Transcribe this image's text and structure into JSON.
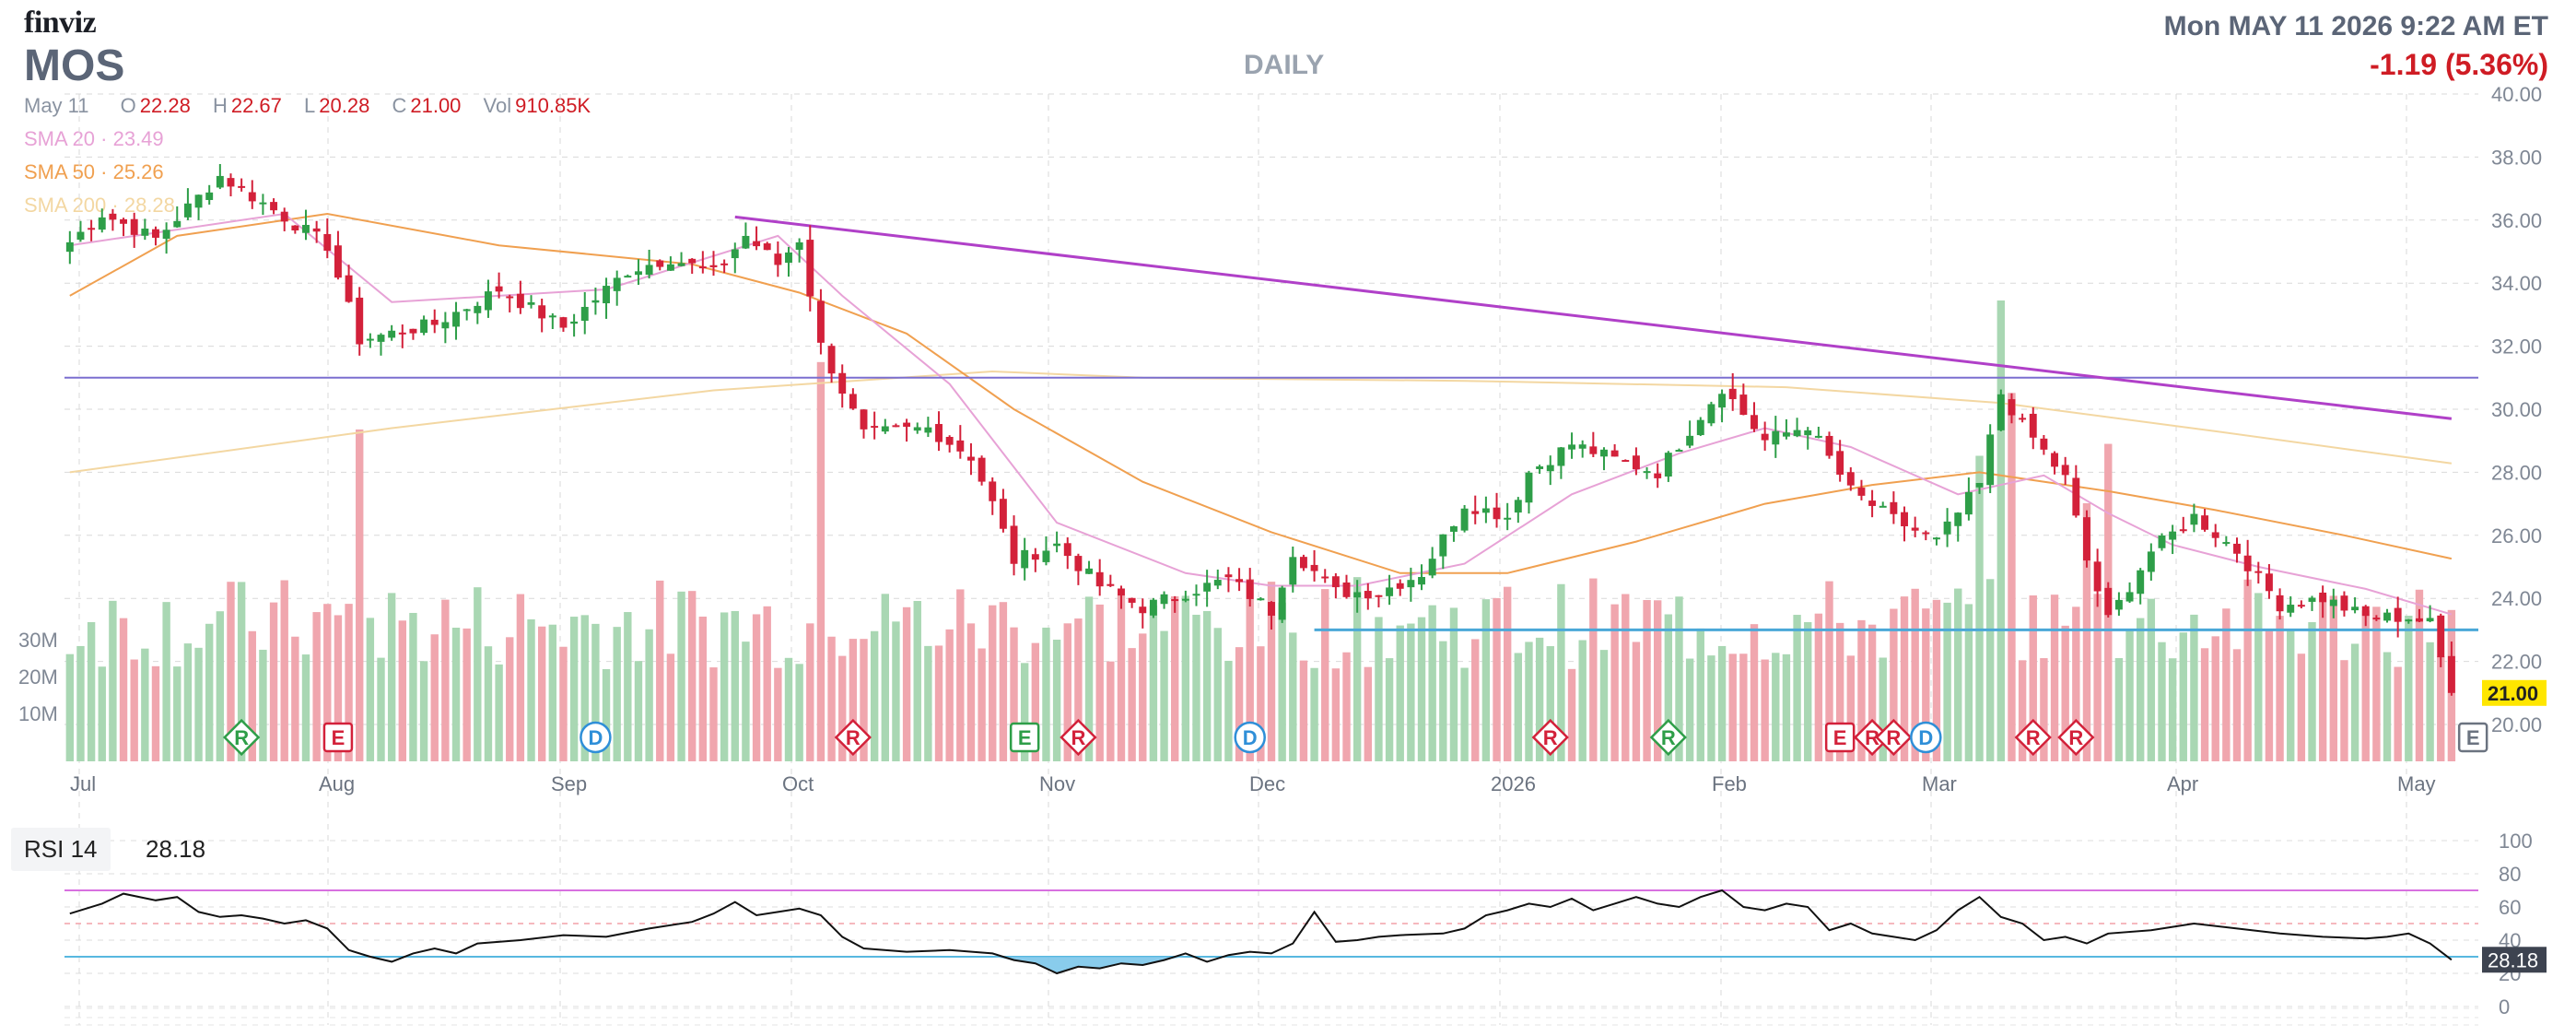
{
  "header": {
    "logo": "finviz",
    "ticker": "MOS",
    "timeframe": "DAILY",
    "datetime": "Mon MAY 11 2026 9:22 AM ET",
    "change": "-1.19 (5.36%)",
    "ohlc_date": "May 11",
    "open_label": "O",
    "open": "22.28",
    "high_label": "H",
    "high": "22.67",
    "low_label": "L",
    "low": "20.28",
    "close_label": "C",
    "close": "21.00",
    "vol_label": "Vol",
    "vol": "910.85K",
    "sma20": "SMA 20 · 23.49",
    "sma50": "SMA 50 · 25.26",
    "sma200": "SMA 200 · 28.28"
  },
  "colors": {
    "up": "#2e9e48",
    "down": "#d3213a",
    "vol_up": "#a9d7b3",
    "vol_down": "#f0a6ae",
    "sma20": "#e7a2d6",
    "sma50": "#f0a050",
    "sma200": "#f3d7a2",
    "trendline": "#b040c8",
    "hline": "#7b6fd0",
    "support": "#4aa8d8",
    "rsi_line": "#111111",
    "rsi_overbought": "#d870e0",
    "rsi_oversold": "#58b8e0"
  },
  "chart_data": [
    {
      "type": "candlestick",
      "ylim": [
        20,
        40
      ],
      "yticks": [
        "40.00",
        "38.00",
        "36.00",
        "34.00",
        "32.00",
        "30.00",
        "28.00",
        "26.00",
        "24.00",
        "22.00",
        "20.00"
      ],
      "last_price": "21.00",
      "xticks": [
        "Jul",
        "Aug",
        "Sep",
        "Oct",
        "Nov",
        "Dec",
        "2026",
        "Feb",
        "Mar",
        "Apr",
        "May"
      ],
      "key_closes": [
        [
          0,
          35.3
        ],
        [
          3,
          36.2
        ],
        [
          8,
          35.4
        ],
        [
          14,
          37.4
        ],
        [
          20,
          36.1
        ],
        [
          24,
          35.2
        ],
        [
          27,
          32.2
        ],
        [
          34,
          32.7
        ],
        [
          40,
          33.8
        ],
        [
          46,
          32.6
        ],
        [
          52,
          34.4
        ],
        [
          56,
          34.8
        ],
        [
          60,
          34.3
        ],
        [
          63,
          35.5
        ],
        [
          66,
          34.6
        ],
        [
          68,
          35.4
        ],
        [
          70,
          32.0
        ],
        [
          74,
          29.2
        ],
        [
          80,
          29.4
        ],
        [
          84,
          28.5
        ],
        [
          86,
          27.0
        ],
        [
          88,
          25.2
        ],
        [
          92,
          25.7
        ],
        [
          96,
          24.4
        ],
        [
          100,
          23.7
        ],
        [
          104,
          24.2
        ],
        [
          108,
          24.6
        ],
        [
          112,
          23.6
        ],
        [
          114,
          25.5
        ],
        [
          118,
          24.2
        ],
        [
          122,
          24.2
        ],
        [
          126,
          24.8
        ],
        [
          130,
          27.0
        ],
        [
          134,
          26.6
        ],
        [
          136,
          28.0
        ],
        [
          140,
          28.9
        ],
        [
          144,
          28.4
        ],
        [
          148,
          28.0
        ],
        [
          152,
          29.8
        ],
        [
          154,
          30.7
        ],
        [
          158,
          29.0
        ],
        [
          162,
          29.5
        ],
        [
          166,
          27.4
        ],
        [
          170,
          26.5
        ],
        [
          174,
          25.8
        ],
        [
          178,
          27.6
        ],
        [
          180,
          30.5
        ],
        [
          182,
          29.5
        ],
        [
          186,
          27.8
        ],
        [
          188,
          25.2
        ],
        [
          190,
          23.3
        ],
        [
          194,
          25.5
        ],
        [
          198,
          26.6
        ],
        [
          202,
          25.5
        ],
        [
          206,
          23.8
        ],
        [
          210,
          24.0
        ],
        [
          214,
          23.4
        ],
        [
          218,
          23.4
        ],
        [
          220,
          23.2
        ],
        [
          222,
          21.0
        ]
      ],
      "sma20": [
        [
          0,
          35.2
        ],
        [
          20,
          36.2
        ],
        [
          30,
          33.4
        ],
        [
          50,
          33.8
        ],
        [
          66,
          35.5
        ],
        [
          72,
          33.6
        ],
        [
          82,
          30.8
        ],
        [
          92,
          26.4
        ],
        [
          104,
          24.8
        ],
        [
          112,
          24.4
        ],
        [
          120,
          24.4
        ],
        [
          130,
          25.1
        ],
        [
          140,
          27.3
        ],
        [
          150,
          28.6
        ],
        [
          158,
          29.4
        ],
        [
          166,
          28.8
        ],
        [
          176,
          27.3
        ],
        [
          184,
          27.9
        ],
        [
          190,
          26.7
        ],
        [
          196,
          25.7
        ],
        [
          204,
          25.0
        ],
        [
          214,
          24.3
        ],
        [
          222,
          23.49
        ]
      ],
      "sma50": [
        [
          0,
          33.6
        ],
        [
          10,
          35.5
        ],
        [
          24,
          36.2
        ],
        [
          40,
          35.2
        ],
        [
          58,
          34.6
        ],
        [
          68,
          33.7
        ],
        [
          78,
          32.4
        ],
        [
          88,
          30.0
        ],
        [
          100,
          27.7
        ],
        [
          112,
          26.1
        ],
        [
          124,
          24.8
        ],
        [
          134,
          24.8
        ],
        [
          146,
          25.8
        ],
        [
          158,
          27.0
        ],
        [
          168,
          27.6
        ],
        [
          178,
          28.0
        ],
        [
          190,
          27.4
        ],
        [
          200,
          26.8
        ],
        [
          212,
          26.0
        ],
        [
          222,
          25.26
        ]
      ],
      "sma200": [
        [
          0,
          28.0
        ],
        [
          30,
          29.4
        ],
        [
          60,
          30.6
        ],
        [
          86,
          31.2
        ],
        [
          100,
          31.0
        ],
        [
          130,
          30.9
        ],
        [
          160,
          30.7
        ],
        [
          180,
          30.2
        ],
        [
          200,
          29.3
        ],
        [
          222,
          28.28
        ]
      ],
      "trendline": [
        [
          62,
          36.1
        ],
        [
          222,
          29.7
        ]
      ],
      "resistance": 31.0,
      "support": 23.0,
      "support_start": 116,
      "events": [
        {
          "letter": "R",
          "x": 16,
          "type": "green-diamond"
        },
        {
          "letter": "E",
          "x": 25,
          "type": "red-square"
        },
        {
          "letter": "D",
          "x": 49,
          "type": "blue-circle"
        },
        {
          "letter": "R",
          "x": 73,
          "type": "red-diamond"
        },
        {
          "letter": "E",
          "x": 89,
          "type": "green-square"
        },
        {
          "letter": "R",
          "x": 94,
          "type": "red-diamond"
        },
        {
          "letter": "D",
          "x": 110,
          "type": "blue-circle"
        },
        {
          "letter": "R",
          "x": 138,
          "type": "red-diamond"
        },
        {
          "letter": "R",
          "x": 149,
          "type": "green-diamond"
        },
        {
          "letter": "E",
          "x": 165,
          "type": "red-square"
        },
        {
          "letter": "R",
          "x": 168,
          "type": "red-diamond"
        },
        {
          "letter": "R",
          "x": 170,
          "type": "red-diamond"
        },
        {
          "letter": "D",
          "x": 173,
          "type": "blue-circle"
        },
        {
          "letter": "R",
          "x": 183,
          "type": "red-diamond"
        },
        {
          "letter": "R",
          "x": 187,
          "type": "red-diamond"
        },
        {
          "letter": "E",
          "x": 224,
          "type": "grey-square"
        }
      ]
    },
    {
      "type": "bar",
      "name": "volume",
      "yticks": [
        "30M",
        "20M",
        "10M"
      ],
      "ylim": [
        0,
        30
      ]
    },
    {
      "type": "line",
      "name": "RSI 14",
      "label": "RSI 14",
      "value": "28.18",
      "ylim": [
        0,
        100
      ],
      "yticks": [
        "100",
        "80",
        "60",
        "40",
        "20",
        "0"
      ],
      "overbought": 70,
      "oversold": 30,
      "points": [
        [
          0,
          56
        ],
        [
          3,
          62
        ],
        [
          5,
          68
        ],
        [
          8,
          64
        ],
        [
          10,
          66
        ],
        [
          12,
          57
        ],
        [
          14,
          54
        ],
        [
          16,
          55
        ],
        [
          18,
          53
        ],
        [
          20,
          50
        ],
        [
          22,
          52
        ],
        [
          24,
          47
        ],
        [
          26,
          34
        ],
        [
          28,
          30
        ],
        [
          30,
          27
        ],
        [
          32,
          32
        ],
        [
          34,
          35
        ],
        [
          36,
          32
        ],
        [
          38,
          38
        ],
        [
          42,
          40
        ],
        [
          46,
          43
        ],
        [
          50,
          42
        ],
        [
          54,
          47
        ],
        [
          58,
          51
        ],
        [
          60,
          56
        ],
        [
          62,
          63
        ],
        [
          64,
          55
        ],
        [
          66,
          57
        ],
        [
          68,
          59
        ],
        [
          70,
          55
        ],
        [
          72,
          42
        ],
        [
          74,
          35
        ],
        [
          78,
          33
        ],
        [
          82,
          34
        ],
        [
          86,
          32
        ],
        [
          88,
          28
        ],
        [
          90,
          26
        ],
        [
          92,
          20
        ],
        [
          94,
          24
        ],
        [
          96,
          23
        ],
        [
          98,
          26
        ],
        [
          100,
          25
        ],
        [
          102,
          28
        ],
        [
          104,
          32
        ],
        [
          106,
          27
        ],
        [
          108,
          31
        ],
        [
          110,
          33
        ],
        [
          112,
          32
        ],
        [
          114,
          38
        ],
        [
          116,
          57
        ],
        [
          118,
          39
        ],
        [
          120,
          40
        ],
        [
          122,
          42
        ],
        [
          124,
          43
        ],
        [
          128,
          44
        ],
        [
          130,
          47
        ],
        [
          132,
          55
        ],
        [
          134,
          58
        ],
        [
          136,
          62
        ],
        [
          138,
          60
        ],
        [
          140,
          65
        ],
        [
          142,
          58
        ],
        [
          144,
          62
        ],
        [
          146,
          66
        ],
        [
          148,
          62
        ],
        [
          150,
          60
        ],
        [
          152,
          66
        ],
        [
          154,
          70
        ],
        [
          156,
          60
        ],
        [
          158,
          58
        ],
        [
          160,
          62
        ],
        [
          162,
          60
        ],
        [
          164,
          46
        ],
        [
          166,
          50
        ],
        [
          168,
          44
        ],
        [
          170,
          42
        ],
        [
          172,
          40
        ],
        [
          174,
          46
        ],
        [
          176,
          58
        ],
        [
          178,
          66
        ],
        [
          180,
          54
        ],
        [
          182,
          50
        ],
        [
          184,
          40
        ],
        [
          186,
          42
        ],
        [
          188,
          38
        ],
        [
          190,
          44
        ],
        [
          194,
          46
        ],
        [
          198,
          50
        ],
        [
          202,
          47
        ],
        [
          206,
          44
        ],
        [
          210,
          42
        ],
        [
          214,
          41
        ],
        [
          216,
          42
        ],
        [
          218,
          44
        ],
        [
          220,
          38
        ],
        [
          222,
          28.18
        ]
      ]
    }
  ],
  "rsi": {
    "label": "RSI 14",
    "value": "28.18"
  }
}
